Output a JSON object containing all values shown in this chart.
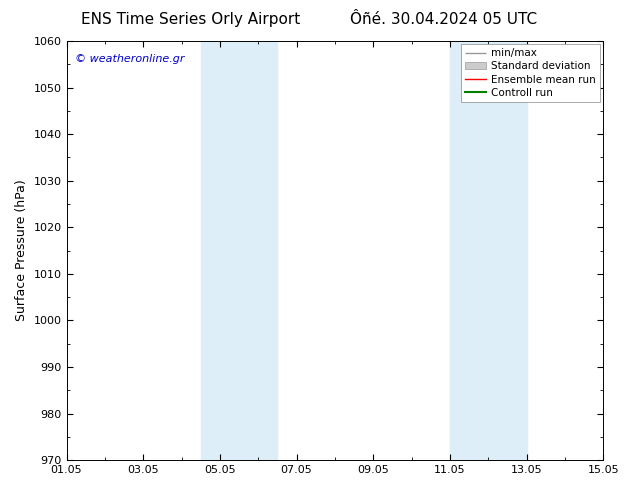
{
  "title_left": "ENS Time Series Orly Airport",
  "title_right": "Ôñé. 30.04.2024 05 UTC",
  "ylabel": "Surface Pressure (hPa)",
  "ylim": [
    970,
    1060
  ],
  "yticks": [
    970,
    980,
    990,
    1000,
    1010,
    1020,
    1030,
    1040,
    1050,
    1060
  ],
  "xlim": [
    0,
    14
  ],
  "xtick_labels": [
    "01.05",
    "03.05",
    "05.05",
    "07.05",
    "09.05",
    "11.05",
    "13.05",
    "15.05"
  ],
  "xtick_positions": [
    0,
    2,
    4,
    6,
    8,
    10,
    12,
    14
  ],
  "shaded_regions": [
    {
      "x_start": 3.5,
      "x_end": 5.5,
      "color": "#deeef8"
    },
    {
      "x_start": 10.0,
      "x_end": 12.0,
      "color": "#deeef8"
    }
  ],
  "watermark": "© weatheronline.gr",
  "watermark_color": "#0000cc",
  "legend_entries": [
    {
      "label": "min/max",
      "type": "line",
      "color": "#999999",
      "lw": 1.0
    },
    {
      "label": "Standard deviation",
      "type": "patch",
      "color": "#cccccc"
    },
    {
      "label": "Ensemble mean run",
      "type": "line",
      "color": "red",
      "lw": 1.0
    },
    {
      "label": "Controll run",
      "type": "line",
      "color": "green",
      "lw": 1.5
    }
  ],
  "bg_color": "#ffffff",
  "title_fontsize": 11,
  "axis_label_fontsize": 9,
  "tick_fontsize": 8,
  "legend_fontsize": 7.5
}
